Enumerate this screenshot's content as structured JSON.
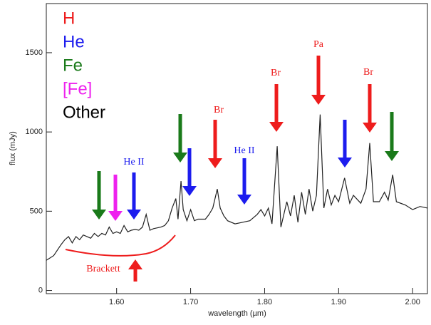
{
  "chart_data": {
    "type": "line",
    "xlabel": "wavelength (µm)",
    "ylabel": "flux (mJy)",
    "x": [
      1.505,
      1.515,
      1.525,
      1.53,
      1.535,
      1.54,
      1.545,
      1.55,
      1.555,
      1.56,
      1.565,
      1.57,
      1.575,
      1.58,
      1.585,
      1.59,
      1.595,
      1.6,
      1.605,
      1.61,
      1.615,
      1.62,
      1.625,
      1.63,
      1.635,
      1.64,
      1.645,
      1.65,
      1.655,
      1.66,
      1.665,
      1.67,
      1.675,
      1.68,
      1.683,
      1.687,
      1.69,
      1.695,
      1.7,
      1.705,
      1.71,
      1.72,
      1.725,
      1.73,
      1.736,
      1.74,
      1.745,
      1.75,
      1.76,
      1.77,
      1.78,
      1.79,
      1.795,
      1.8,
      1.805,
      1.81,
      1.817,
      1.822,
      1.83,
      1.835,
      1.84,
      1.845,
      1.85,
      1.855,
      1.86,
      1.865,
      1.87,
      1.875,
      1.88,
      1.885,
      1.89,
      1.895,
      1.9,
      1.908,
      1.915,
      1.92,
      1.93,
      1.937,
      1.942,
      1.947,
      1.955,
      1.962,
      1.967,
      1.973,
      1.978,
      1.99,
      2.0,
      2.01,
      2.02
    ],
    "values": [
      190,
      220,
      290,
      320,
      340,
      300,
      340,
      320,
      350,
      340,
      330,
      360,
      340,
      360,
      350,
      400,
      360,
      370,
      360,
      410,
      370,
      380,
      385,
      380,
      400,
      480,
      380,
      390,
      395,
      400,
      410,
      440,
      520,
      580,
      450,
      690,
      510,
      440,
      510,
      440,
      450,
      450,
      480,
      520,
      640,
      520,
      470,
      440,
      420,
      430,
      440,
      480,
      510,
      470,
      520,
      420,
      910,
      400,
      560,
      470,
      600,
      430,
      620,
      480,
      640,
      500,
      600,
      1110,
      520,
      640,
      540,
      600,
      560,
      710,
      550,
      600,
      550,
      640,
      930,
      560,
      560,
      620,
      570,
      730,
      560,
      540,
      510,
      530,
      520
    ],
    "color": "#222222",
    "xlim": [
      1.505,
      2.02
    ],
    "ylim": [
      -20,
      1810
    ],
    "xticks": [
      {
        "value": 1.6,
        "label": "1.60"
      },
      {
        "value": 1.7,
        "label": "1.70"
      },
      {
        "value": 1.8,
        "label": "1.80"
      },
      {
        "value": 1.9,
        "label": "1.90"
      },
      {
        "value": 2.0,
        "label": "2.00"
      }
    ],
    "yticks": [
      0,
      500,
      1000,
      1500
    ],
    "legend": [
      {
        "label": "H",
        "color": "#ee1c1c"
      },
      {
        "label": "He",
        "color": "#1c1cee"
      },
      {
        "label": "Fe",
        "color": "#1a7a1a"
      },
      {
        "label": "[Fe]",
        "color": "#ee22ee"
      },
      {
        "label": "Other",
        "color": "#000000"
      }
    ],
    "annotations": [
      "He II",
      "Br",
      "He II",
      "Br",
      "Pa",
      "Br",
      "Brackett"
    ]
  }
}
